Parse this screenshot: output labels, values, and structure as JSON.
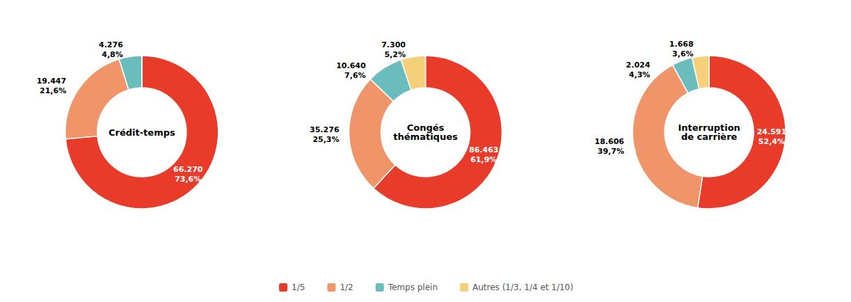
{
  "chart_data": [
    {
      "type": "pie",
      "title": "Crédit-temps",
      "categories": [
        "1/5",
        "1/2",
        "Temps plein",
        "Autres (1/3, 1/4 et 1/10)"
      ],
      "values": [
        73.6,
        21.6,
        4.8,
        0.0
      ],
      "value_labels": [
        "73,6%",
        "21,6%",
        "4,8%",
        null
      ],
      "counts": [
        66270,
        19447,
        4276,
        null
      ],
      "count_labels": [
        "66.270",
        "19.447",
        "4.276",
        null
      ],
      "colors": [
        "#e83b2a",
        "#f0956a",
        "#6bbcbc",
        "#f5d07a"
      ],
      "legend": "bottom"
    },
    {
      "type": "pie",
      "title": "Congés\nthématiques",
      "categories": [
        "1/5",
        "1/2",
        "Temps plein",
        "Autres (1/3, 1/4 et 1/10)"
      ],
      "values": [
        61.9,
        25.3,
        7.6,
        5.2
      ],
      "value_labels": [
        "61,9%",
        "25,3%",
        "7,6%",
        "5,2%"
      ],
      "counts": [
        86463,
        35276,
        10640,
        7300
      ],
      "count_labels": [
        "86.463",
        "35.276",
        "10.640",
        "7.300"
      ],
      "colors": [
        "#e83b2a",
        "#f0956a",
        "#6bbcbc",
        "#f5d07a"
      ],
      "legend": "bottom"
    },
    {
      "type": "pie",
      "title": "Interruption\nde carrière",
      "categories": [
        "1/5",
        "1/2",
        "Temps plein",
        "Autres (1/3, 1/4 et 1/10)"
      ],
      "values": [
        52.4,
        39.7,
        4.3,
        3.6
      ],
      "value_labels": [
        "52,4%",
        "39,7%",
        "4,3%",
        "3,6%"
      ],
      "counts": [
        24591,
        18606,
        2024,
        1668
      ],
      "count_labels": [
        "24.591",
        "18.606",
        "2.024",
        "1.668"
      ],
      "colors": [
        "#e83b2a",
        "#f0956a",
        "#6bbcbc",
        "#f5d07a"
      ],
      "legend": "bottom"
    }
  ]
}
